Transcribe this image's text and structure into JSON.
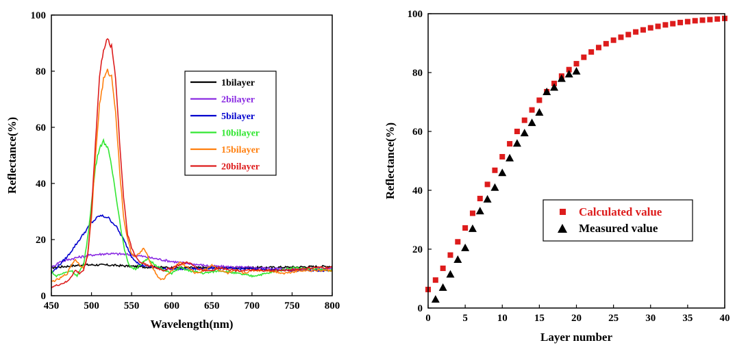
{
  "chart_data": [
    {
      "type": "line",
      "xlabel": "Wavelength(nm)",
      "ylabel": "Reflectance(%)",
      "xlim": [
        450,
        800
      ],
      "ylim": [
        0,
        100
      ],
      "xticks": [
        450,
        500,
        550,
        600,
        650,
        700,
        750,
        800
      ],
      "yticks": [
        0,
        20,
        40,
        60,
        80,
        100
      ],
      "legend_position": "right",
      "series": [
        {
          "name": "1bilayer",
          "color": "#000000",
          "x": [
            450,
            470,
            490,
            510,
            530,
            550,
            570,
            600,
            650,
            700,
            750,
            800
          ],
          "y": [
            10,
            10.5,
            11,
            11,
            10.8,
            10.5,
            10.2,
            10,
            10,
            10,
            10.2,
            10.5
          ]
        },
        {
          "name": "2bilayer",
          "color": "#8a2be2",
          "x": [
            450,
            460,
            480,
            500,
            520,
            540,
            560,
            580,
            600,
            620,
            650,
            700,
            750,
            800
          ],
          "y": [
            10,
            12,
            13.5,
            14.5,
            15,
            14.8,
            14.2,
            13.2,
            12.2,
            11.5,
            10.5,
            10,
            9.5,
            9.5
          ]
        },
        {
          "name": "5bilayer",
          "color": "#0000cd",
          "x": [
            450,
            460,
            470,
            480,
            490,
            500,
            510,
            520,
            530,
            540,
            550,
            560,
            570,
            580,
            590,
            600,
            620,
            650,
            700,
            750,
            800
          ],
          "y": [
            8,
            11,
            14,
            18,
            22,
            26,
            28.5,
            28,
            25,
            20,
            14,
            11,
            10.5,
            10,
            9.8,
            9.5,
            9.5,
            9.8,
            9.5,
            9,
            9
          ]
        },
        {
          "name": "10bilayer",
          "color": "#32e632",
          "x": [
            450,
            455,
            465,
            475,
            482,
            490,
            495,
            500,
            505,
            510,
            515,
            520,
            525,
            530,
            535,
            540,
            545,
            550,
            555,
            560,
            570,
            580,
            590,
            600,
            610,
            620,
            640,
            660,
            680,
            700,
            720,
            750,
            800
          ],
          "y": [
            9,
            7,
            8,
            9,
            7,
            11,
            20,
            33,
            46,
            53,
            55,
            53,
            46,
            37,
            27,
            18,
            12,
            10,
            9.5,
            11,
            13,
            11,
            9,
            8,
            10,
            9,
            8,
            9,
            8,
            7,
            8,
            10,
            9
          ]
        },
        {
          "name": "15bilayer",
          "color": "#ff7f0e",
          "x": [
            450,
            460,
            470,
            475,
            480,
            485,
            490,
            495,
            500,
            505,
            510,
            515,
            520,
            525,
            530,
            535,
            540,
            545,
            550,
            555,
            560,
            565,
            570,
            575,
            580,
            585,
            590,
            600,
            610,
            620,
            630,
            640,
            650,
            660,
            670,
            680,
            690,
            700,
            720,
            740,
            760,
            780,
            800
          ],
          "y": [
            5,
            6,
            8,
            11,
            13,
            11,
            10,
            14,
            28,
            50,
            68,
            77,
            80,
            78,
            66,
            45,
            28,
            20,
            15,
            14,
            15,
            17,
            14,
            11,
            8,
            6,
            6,
            9,
            12,
            10,
            8,
            9,
            11,
            9,
            8,
            9,
            8,
            9,
            9,
            8,
            9,
            9,
            9
          ]
        },
        {
          "name": "20bilayer",
          "color": "#dd1c1c",
          "x": [
            450,
            460,
            470,
            475,
            480,
            485,
            490,
            495,
            500,
            505,
            510,
            515,
            520,
            525,
            530,
            535,
            540,
            545,
            550,
            555,
            560,
            570,
            580,
            590,
            600,
            610,
            620,
            630,
            640,
            650,
            660,
            680,
            700,
            720,
            740,
            760,
            780,
            800
          ],
          "y": [
            3,
            4,
            5,
            7,
            9,
            8,
            9,
            14,
            30,
            55,
            78,
            88,
            91,
            89,
            78,
            55,
            35,
            22,
            17,
            14,
            12,
            11,
            10,
            9,
            10,
            11,
            12,
            10,
            9,
            9,
            10,
            9,
            9,
            9,
            9,
            9.5,
            10,
            10
          ]
        }
      ]
    },
    {
      "type": "scatter",
      "xlabel": "Layer number",
      "ylabel": "Reflectance(%)",
      "xlim": [
        0,
        40
      ],
      "ylim": [
        0,
        100
      ],
      "xticks": [
        0,
        5,
        10,
        15,
        20,
        25,
        30,
        35,
        40
      ],
      "yticks": [
        0,
        20,
        40,
        60,
        80,
        100
      ],
      "legend_position": "center-right",
      "series": [
        {
          "name": "Calculated value",
          "color": "#dd1c1c",
          "marker": "square",
          "x": [
            0,
            1,
            2,
            3,
            4,
            5,
            6,
            7,
            8,
            9,
            10,
            11,
            12,
            13,
            14,
            15,
            16,
            17,
            18,
            19,
            20,
            21,
            22,
            23,
            24,
            25,
            26,
            27,
            28,
            29,
            30,
            31,
            32,
            33,
            34,
            35,
            36,
            37,
            38,
            39,
            40
          ],
          "y": [
            6.3,
            9.5,
            13.5,
            18,
            22.5,
            27.2,
            32.2,
            37.2,
            42,
            46.8,
            51.4,
            55.8,
            60,
            63.8,
            67.3,
            70.6,
            73.5,
            76.3,
            78.8,
            81,
            83,
            85.2,
            87,
            88.5,
            89.8,
            91,
            92,
            92.9,
            93.8,
            94.5,
            95.2,
            95.7,
            96.2,
            96.6,
            97,
            97.3,
            97.6,
            97.8,
            98,
            98.2,
            98.4
          ]
        },
        {
          "name": "Measured value",
          "color": "#000000",
          "marker": "triangle",
          "x": [
            1,
            2,
            3,
            4,
            5,
            6,
            7,
            8,
            9,
            10,
            11,
            12,
            13,
            14,
            15,
            16,
            17,
            18,
            19,
            20
          ],
          "y": [
            3,
            7,
            11.5,
            16.5,
            20.5,
            27,
            33,
            37,
            41,
            46,
            51,
            56,
            59.5,
            63,
            66.5,
            73.5,
            75,
            78,
            79.5,
            80.5
          ]
        }
      ]
    }
  ]
}
